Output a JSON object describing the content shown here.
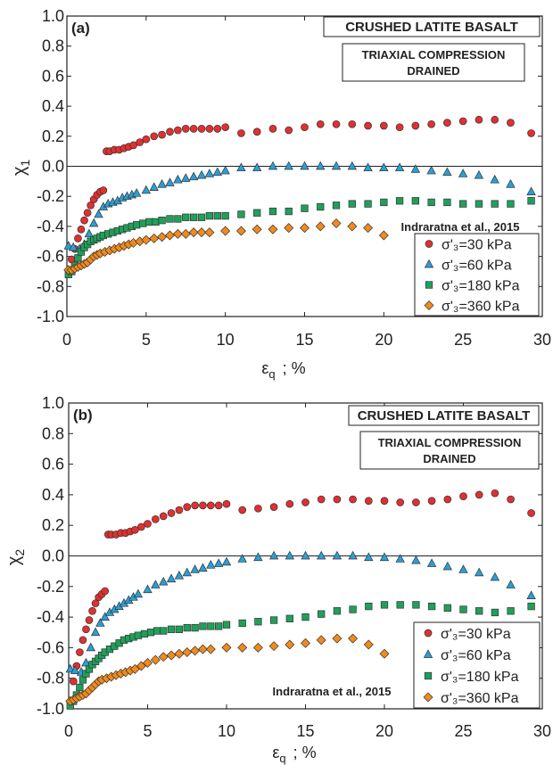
{
  "colors": {
    "s30": "#e03030",
    "s60": "#2a9fd6",
    "s180": "#1fa05a",
    "s360": "#f08a1c",
    "marker_stroke": "#333333",
    "axis": "#222222"
  },
  "chart_data": [
    {
      "type": "scatter",
      "panel_label": "(a)",
      "title": "CRUSHED LATITE BASALT",
      "subtitle_line1": "TRIAXIAL COMPRESSION",
      "subtitle_line2": "DRAINED",
      "source": "Indraratna et al., 2015",
      "xlabel": "ε",
      "xlabel_sub": "q",
      "xlabel_unit": "; %",
      "ylabel": "χ",
      "ylabel_sub": "1",
      "xlim": [
        0,
        30
      ],
      "ylim": [
        -1.0,
        1.0
      ],
      "xticks": [
        "0",
        "5",
        "10",
        "15",
        "20",
        "25",
        "30"
      ],
      "yticks": [
        "-1.0",
        "-0.8",
        "-0.6",
        "-0.4",
        "-0.2",
        "0.0",
        "0.2",
        "0.4",
        "0.6",
        "0.8",
        "1.0"
      ],
      "legend": [
        "σ'₃=30 kPa",
        "σ'₃=60 kPa",
        "σ'₃=180 kPa",
        "σ'₃=360 kPa"
      ],
      "series": [
        {
          "name": "σ'₃=30 kPa",
          "marker": "circle",
          "color": "s30",
          "x": [
            0.3,
            0.5,
            0.7,
            0.9,
            1.1,
            1.3,
            1.5,
            1.7,
            1.9,
            2.1,
            2.3,
            2.5,
            2.7,
            3.0,
            3.3,
            3.6,
            3.9,
            4.2,
            4.6,
            5.0,
            5.5,
            6.0,
            6.5,
            7.0,
            7.5,
            8.0,
            8.5,
            9.0,
            9.5,
            10,
            11,
            12,
            13,
            14,
            15,
            16,
            17,
            18,
            19,
            20,
            21,
            22,
            23,
            24,
            25,
            26,
            27,
            28,
            29.3
          ],
          "y": [
            -0.62,
            -0.55,
            -0.48,
            -0.42,
            -0.36,
            -0.31,
            -0.26,
            -0.22,
            -0.19,
            -0.17,
            -0.16,
            0.1,
            0.1,
            0.11,
            0.11,
            0.12,
            0.13,
            0.14,
            0.16,
            0.18,
            0.2,
            0.21,
            0.23,
            0.24,
            0.25,
            0.25,
            0.25,
            0.25,
            0.25,
            0.26,
            0.22,
            0.23,
            0.25,
            0.24,
            0.26,
            0.28,
            0.28,
            0.28,
            0.27,
            0.27,
            0.26,
            0.27,
            0.28,
            0.29,
            0.3,
            0.31,
            0.31,
            0.29,
            0.22
          ]
        },
        {
          "name": "σ'₃=60 kPa",
          "marker": "triangle",
          "color": "s60",
          "x": [
            0.1,
            0.4,
            0.8,
            1.1,
            1.4,
            1.7,
            2.0,
            2.3,
            2.6,
            2.9,
            3.2,
            3.5,
            3.8,
            4.1,
            4.4,
            5,
            5.5,
            6,
            6.5,
            7,
            7.5,
            8,
            8.5,
            9,
            9.5,
            10,
            11,
            12,
            13,
            14,
            15,
            16,
            17,
            18,
            19,
            20,
            21,
            22,
            23,
            24,
            25,
            26,
            27,
            28,
            29.3
          ],
          "y": [
            -0.53,
            -0.54,
            -0.55,
            -0.52,
            -0.45,
            -0.38,
            -0.32,
            -0.27,
            -0.25,
            -0.24,
            -0.23,
            -0.21,
            -0.2,
            -0.19,
            -0.18,
            -0.16,
            -0.14,
            -0.12,
            -0.11,
            -0.09,
            -0.08,
            -0.07,
            -0.06,
            -0.05,
            -0.04,
            -0.03,
            -0.01,
            -0.01,
            0.0,
            0.0,
            0.0,
            0.0,
            0.0,
            0.0,
            -0.01,
            -0.01,
            -0.01,
            -0.02,
            -0.03,
            -0.04,
            -0.05,
            -0.06,
            -0.09,
            -0.12,
            -0.17
          ]
        },
        {
          "name": "σ'₃=180 kPa",
          "marker": "square",
          "color": "s180",
          "x": [
            0.1,
            0.3,
            0.5,
            0.7,
            0.9,
            1.1,
            1.3,
            1.5,
            1.7,
            1.9,
            2.1,
            2.3,
            2.6,
            2.9,
            3.2,
            3.5,
            3.8,
            4.1,
            4.4,
            4.8,
            5.2,
            5.6,
            6,
            6.5,
            7,
            7.5,
            8,
            8.5,
            9,
            9.5,
            10,
            11,
            12,
            13,
            14,
            15,
            16,
            17,
            18,
            19,
            20,
            21,
            22,
            23,
            24,
            25,
            26,
            27,
            28,
            29.3
          ],
          "y": [
            -0.72,
            -0.7,
            -0.66,
            -0.61,
            -0.57,
            -0.54,
            -0.52,
            -0.5,
            -0.49,
            -0.48,
            -0.47,
            -0.46,
            -0.45,
            -0.44,
            -0.43,
            -0.42,
            -0.41,
            -0.4,
            -0.39,
            -0.38,
            -0.37,
            -0.37,
            -0.36,
            -0.35,
            -0.35,
            -0.34,
            -0.34,
            -0.34,
            -0.33,
            -0.33,
            -0.33,
            -0.32,
            -0.31,
            -0.3,
            -0.3,
            -0.28,
            -0.27,
            -0.26,
            -0.25,
            -0.25,
            -0.24,
            -0.23,
            -0.23,
            -0.24,
            -0.24,
            -0.25,
            -0.25,
            -0.25,
            -0.25,
            -0.23
          ]
        },
        {
          "name": "σ'₃=360 kPa",
          "marker": "diamond",
          "color": "s360",
          "x": [
            0.1,
            0.3,
            0.5,
            0.7,
            0.9,
            1.1,
            1.3,
            1.5,
            1.7,
            1.9,
            2.1,
            2.4,
            2.7,
            3.0,
            3.3,
            3.6,
            3.9,
            4.2,
            4.6,
            5,
            5.5,
            6,
            6.5,
            7,
            7.5,
            8,
            8.5,
            9,
            10,
            11,
            12,
            13,
            14,
            15,
            16,
            17,
            18,
            19,
            20
          ],
          "y": [
            -0.69,
            -0.69,
            -0.68,
            -0.67,
            -0.66,
            -0.65,
            -0.64,
            -0.62,
            -0.6,
            -0.59,
            -0.58,
            -0.57,
            -0.56,
            -0.55,
            -0.54,
            -0.53,
            -0.52,
            -0.51,
            -0.5,
            -0.49,
            -0.48,
            -0.47,
            -0.46,
            -0.45,
            -0.45,
            -0.44,
            -0.44,
            -0.44,
            -0.43,
            -0.43,
            -0.42,
            -0.42,
            -0.41,
            -0.41,
            -0.4,
            -0.38,
            -0.4,
            -0.41,
            -0.46
          ]
        }
      ]
    },
    {
      "type": "scatter",
      "panel_label": "(b)",
      "title": "CRUSHED LATITE BASALT",
      "subtitle_line1": "TRIAXIAL COMPRESSION",
      "subtitle_line2": "DRAINED",
      "source": "Indraratna et al., 2015",
      "xlabel": "ε",
      "xlabel_sub": "q",
      "xlabel_unit": "; %",
      "ylabel": "χ",
      "ylabel_sub": "2",
      "xlim": [
        0,
        30
      ],
      "ylim": [
        -1.0,
        1.0
      ],
      "xticks": [
        "0",
        "5",
        "10",
        "15",
        "20",
        "25",
        "30"
      ],
      "yticks": [
        "-1.0",
        "-0.8",
        "-0.6",
        "-0.4",
        "-0.2",
        "0.0",
        "0.2",
        "0.4",
        "0.6",
        "0.8",
        "1.0"
      ],
      "legend": [
        "σ'₃=30 kPa",
        "σ'₃=60 kPa",
        "σ'₃=180 kPa",
        "σ'₃=360 kPa"
      ],
      "series": [
        {
          "name": "σ'₃=30 kPa",
          "marker": "circle",
          "color": "s30",
          "x": [
            0.3,
            0.5,
            0.7,
            0.9,
            1.1,
            1.3,
            1.5,
            1.7,
            1.9,
            2.1,
            2.3,
            2.5,
            2.7,
            3.0,
            3.3,
            3.6,
            3.9,
            4.2,
            4.6,
            5.0,
            5.5,
            6.0,
            6.5,
            7.0,
            7.5,
            8.0,
            8.5,
            9.0,
            9.5,
            10,
            11,
            12,
            13,
            14,
            15,
            16,
            17,
            18,
            19,
            20,
            21,
            22,
            23,
            24,
            25,
            26,
            27,
            28,
            29.3
          ],
          "y": [
            -0.82,
            -0.72,
            -0.63,
            -0.55,
            -0.48,
            -0.42,
            -0.36,
            -0.31,
            -0.27,
            -0.25,
            -0.23,
            0.14,
            0.14,
            0.14,
            0.15,
            0.15,
            0.16,
            0.17,
            0.19,
            0.21,
            0.24,
            0.26,
            0.28,
            0.3,
            0.32,
            0.33,
            0.33,
            0.33,
            0.33,
            0.34,
            0.3,
            0.31,
            0.32,
            0.34,
            0.35,
            0.37,
            0.37,
            0.37,
            0.36,
            0.36,
            0.35,
            0.35,
            0.36,
            0.37,
            0.39,
            0.4,
            0.41,
            0.37,
            0.28
          ]
        },
        {
          "name": "σ'₃=60 kPa",
          "marker": "triangle",
          "color": "s60",
          "x": [
            0.1,
            0.4,
            0.8,
            1.1,
            1.4,
            1.7,
            2.0,
            2.3,
            2.6,
            2.9,
            3.2,
            3.5,
            3.8,
            4.1,
            4.4,
            5,
            5.5,
            6,
            6.5,
            7,
            7.5,
            8,
            8.5,
            9,
            9.5,
            10,
            11,
            12,
            13,
            14,
            15,
            16,
            17,
            18,
            19,
            20,
            21,
            22,
            23,
            24,
            25,
            26,
            27,
            28,
            29.3
          ],
          "y": [
            -0.74,
            -0.75,
            -0.76,
            -0.7,
            -0.6,
            -0.5,
            -0.44,
            -0.4,
            -0.37,
            -0.35,
            -0.33,
            -0.31,
            -0.29,
            -0.27,
            -0.25,
            -0.22,
            -0.19,
            -0.17,
            -0.15,
            -0.13,
            -0.11,
            -0.09,
            -0.08,
            -0.06,
            -0.05,
            -0.04,
            -0.02,
            -0.01,
            0.0,
            0.0,
            0.0,
            0.0,
            0.0,
            0.0,
            -0.01,
            -0.01,
            -0.02,
            -0.03,
            -0.05,
            -0.07,
            -0.09,
            -0.11,
            -0.14,
            -0.19,
            -0.26
          ]
        },
        {
          "name": "σ'₃=180 kPa",
          "marker": "square",
          "color": "s180",
          "x": [
            0.1,
            0.3,
            0.5,
            0.7,
            0.9,
            1.1,
            1.3,
            1.5,
            1.7,
            1.9,
            2.1,
            2.3,
            2.6,
            2.9,
            3.2,
            3.5,
            3.8,
            4.1,
            4.4,
            4.8,
            5.2,
            5.6,
            6,
            6.5,
            7,
            7.5,
            8,
            8.5,
            9,
            9.5,
            10,
            11,
            12,
            13,
            14,
            15,
            16,
            17,
            18,
            19,
            20,
            21,
            22,
            23,
            24,
            25,
            26,
            27,
            28,
            29.3
          ],
          "y": [
            -0.98,
            -0.95,
            -0.91,
            -0.86,
            -0.81,
            -0.77,
            -0.74,
            -0.71,
            -0.69,
            -0.67,
            -0.65,
            -0.63,
            -0.61,
            -0.59,
            -0.57,
            -0.55,
            -0.54,
            -0.53,
            -0.52,
            -0.51,
            -0.5,
            -0.49,
            -0.49,
            -0.48,
            -0.48,
            -0.47,
            -0.47,
            -0.46,
            -0.46,
            -0.46,
            -0.45,
            -0.44,
            -0.43,
            -0.42,
            -0.41,
            -0.4,
            -0.38,
            -0.36,
            -0.35,
            -0.33,
            -0.32,
            -0.32,
            -0.32,
            -0.33,
            -0.34,
            -0.35,
            -0.36,
            -0.37,
            -0.36,
            -0.33
          ]
        },
        {
          "name": "σ'₃=360 kPa",
          "marker": "diamond",
          "color": "s360",
          "x": [
            0.1,
            0.3,
            0.5,
            0.7,
            0.9,
            1.1,
            1.3,
            1.5,
            1.7,
            1.9,
            2.1,
            2.4,
            2.7,
            3.0,
            3.3,
            3.6,
            3.9,
            4.2,
            4.6,
            5,
            5.5,
            6,
            6.5,
            7,
            7.5,
            8,
            8.5,
            9,
            10,
            11,
            12,
            13,
            14,
            15,
            16,
            17,
            18,
            19,
            20
          ],
          "y": [
            -0.95,
            -0.94,
            -0.93,
            -0.92,
            -0.91,
            -0.9,
            -0.88,
            -0.86,
            -0.84,
            -0.82,
            -0.81,
            -0.8,
            -0.79,
            -0.78,
            -0.77,
            -0.76,
            -0.75,
            -0.74,
            -0.72,
            -0.7,
            -0.68,
            -0.66,
            -0.65,
            -0.64,
            -0.63,
            -0.62,
            -0.61,
            -0.61,
            -0.6,
            -0.6,
            -0.6,
            -0.59,
            -0.58,
            -0.57,
            -0.55,
            -0.54,
            -0.54,
            -0.58,
            -0.64
          ]
        }
      ]
    }
  ]
}
